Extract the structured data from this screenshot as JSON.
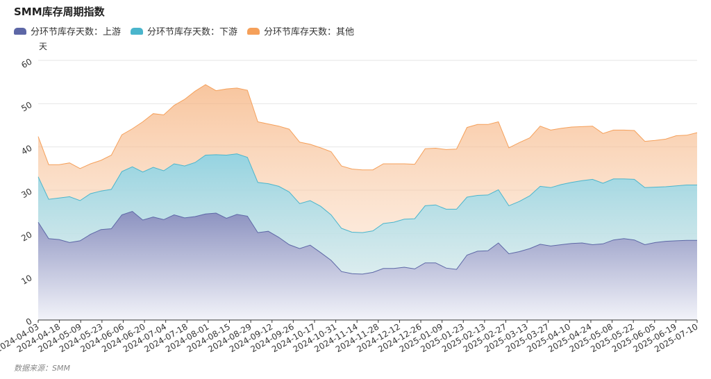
{
  "title": "SMM库存周期指数",
  "source": "数据来源：SMM",
  "chart_data": {
    "type": "area",
    "ylabel": "天",
    "ylim": [
      0,
      60
    ],
    "yticks": [
      0,
      10,
      20,
      30,
      40,
      50,
      60
    ],
    "grid": true,
    "legend_position": "top-left",
    "x_tick_labels": [
      "2024-04-03",
      "2024-04-18",
      "2024-05-09",
      "2024-05-23",
      "2024-06-06",
      "2024-06-20",
      "2024-07-04",
      "2024-07-18",
      "2024-08-01",
      "2024-08-15",
      "2024-08-29",
      "2024-09-12",
      "2024-09-26",
      "2024-10-17",
      "2024-10-31",
      "2024-11-14",
      "2024-11-28",
      "2024-12-12",
      "2024-12-26",
      "2025-01-09",
      "2025-01-23",
      "2025-02-13",
      "2025-02-27",
      "2025-03-13",
      "2025-03-27",
      "2025-04-10",
      "2025-04-24",
      "2025-05-08",
      "2025-05-22",
      "2025-06-05",
      "2025-06-19",
      "2025-07-10"
    ],
    "series": [
      {
        "name": "分环节库存天数：上游",
        "color": "#5d67a6",
        "values": [
          22.6,
          18.8,
          18.6,
          17.9,
          18.3,
          19.8,
          20.9,
          21.1,
          24.3,
          25.1,
          23.1,
          23.8,
          23.2,
          24.3,
          23.6,
          23.9,
          24.5,
          24.7,
          23.5,
          24.4,
          24.0,
          20.2,
          20.5,
          19.1,
          17.4,
          16.5,
          17.3,
          15.6,
          13.8,
          11.2,
          10.7,
          10.6,
          11.0,
          11.9,
          11.9,
          12.2,
          11.8,
          13.2,
          13.2,
          12.0,
          11.7,
          15.0,
          15.9,
          16.0,
          17.8,
          15.3,
          15.8,
          16.5,
          17.5,
          17.1,
          17.4,
          17.7,
          17.8,
          17.4,
          17.6,
          18.5,
          18.8,
          18.5,
          17.4,
          17.9,
          18.2,
          18.3,
          18.4,
          18.4
        ]
      },
      {
        "name": "分环节库存天数：下游",
        "color": "#4ab5cc",
        "values": [
          33.1,
          27.9,
          28.2,
          28.5,
          27.6,
          29.2,
          29.8,
          30.2,
          34.3,
          35.4,
          34.2,
          35.3,
          34.5,
          36.1,
          35.6,
          36.4,
          38.1,
          38.2,
          38.1,
          38.4,
          37.6,
          31.8,
          31.5,
          30.9,
          29.6,
          26.9,
          27.6,
          26.3,
          24.3,
          21.2,
          20.3,
          20.2,
          20.6,
          22.3,
          22.6,
          23.3,
          23.4,
          26.4,
          26.6,
          25.6,
          25.6,
          28.4,
          28.8,
          28.9,
          30.1,
          26.4,
          27.4,
          28.7,
          30.9,
          30.6,
          31.3,
          31.8,
          32.2,
          32.5,
          31.6,
          32.6,
          32.6,
          32.5,
          30.6,
          30.7,
          30.8,
          31.0,
          31.2,
          31.2
        ]
      },
      {
        "name": "分环节库存天数：其他",
        "color": "#f5a05a",
        "values": [
          42.4,
          35.9,
          35.9,
          36.3,
          35.0,
          36.1,
          36.9,
          38.1,
          42.8,
          44.2,
          45.8,
          47.7,
          47.4,
          49.6,
          51.0,
          52.9,
          54.4,
          53.0,
          53.4,
          53.6,
          53.1,
          45.8,
          45.3,
          44.8,
          44.1,
          41.1,
          40.6,
          39.8,
          38.9,
          35.6,
          34.9,
          34.7,
          34.7,
          36.1,
          36.1,
          36.1,
          36.0,
          39.6,
          39.7,
          39.4,
          39.5,
          44.5,
          45.2,
          45.2,
          45.8,
          39.8,
          41.0,
          42.1,
          44.8,
          43.9,
          44.3,
          44.6,
          44.7,
          44.8,
          43.1,
          43.9,
          43.9,
          43.8,
          41.3,
          41.5,
          41.8,
          42.6,
          42.7,
          43.3
        ]
      }
    ]
  }
}
